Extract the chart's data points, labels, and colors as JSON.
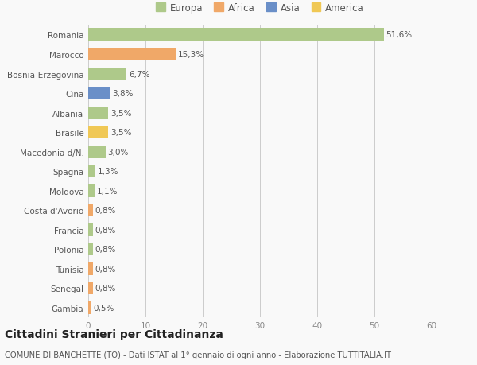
{
  "categories": [
    "Romania",
    "Marocco",
    "Bosnia-Erzegovina",
    "Cina",
    "Albania",
    "Brasile",
    "Macedonia d/N.",
    "Spagna",
    "Moldova",
    "Costa d'Avorio",
    "Francia",
    "Polonia",
    "Tunisia",
    "Senegal",
    "Gambia"
  ],
  "values": [
    51.6,
    15.3,
    6.7,
    3.8,
    3.5,
    3.5,
    3.0,
    1.3,
    1.1,
    0.8,
    0.8,
    0.8,
    0.8,
    0.8,
    0.5
  ],
  "labels": [
    "51,6%",
    "15,3%",
    "6,7%",
    "3,8%",
    "3,5%",
    "3,5%",
    "3,0%",
    "1,3%",
    "1,1%",
    "0,8%",
    "0,8%",
    "0,8%",
    "0,8%",
    "0,8%",
    "0,5%"
  ],
  "colors": [
    "#aec98a",
    "#f0a868",
    "#aec98a",
    "#6a8fc8",
    "#aec98a",
    "#f0c855",
    "#aec98a",
    "#aec98a",
    "#aec98a",
    "#f0a868",
    "#aec98a",
    "#aec98a",
    "#f0a868",
    "#f0a868",
    "#f0a868"
  ],
  "legend_labels": [
    "Europa",
    "Africa",
    "Asia",
    "America"
  ],
  "legend_colors": [
    "#aec98a",
    "#f0a868",
    "#6a8fc8",
    "#f0c855"
  ],
  "title": "Cittadini Stranieri per Cittadinanza",
  "subtitle": "COMUNE DI BANCHETTE (TO) - Dati ISTAT al 1° gennaio di ogni anno - Elaborazione TUTTITALIA.IT",
  "xlim": [
    0,
    60
  ],
  "xticks": [
    0,
    10,
    20,
    30,
    40,
    50,
    60
  ],
  "background_color": "#f9f9f9",
  "bar_height": 0.65,
  "label_fontsize": 7.5,
  "tick_fontsize": 7.5,
  "title_fontsize": 10,
  "subtitle_fontsize": 7.2,
  "legend_fontsize": 8.5
}
